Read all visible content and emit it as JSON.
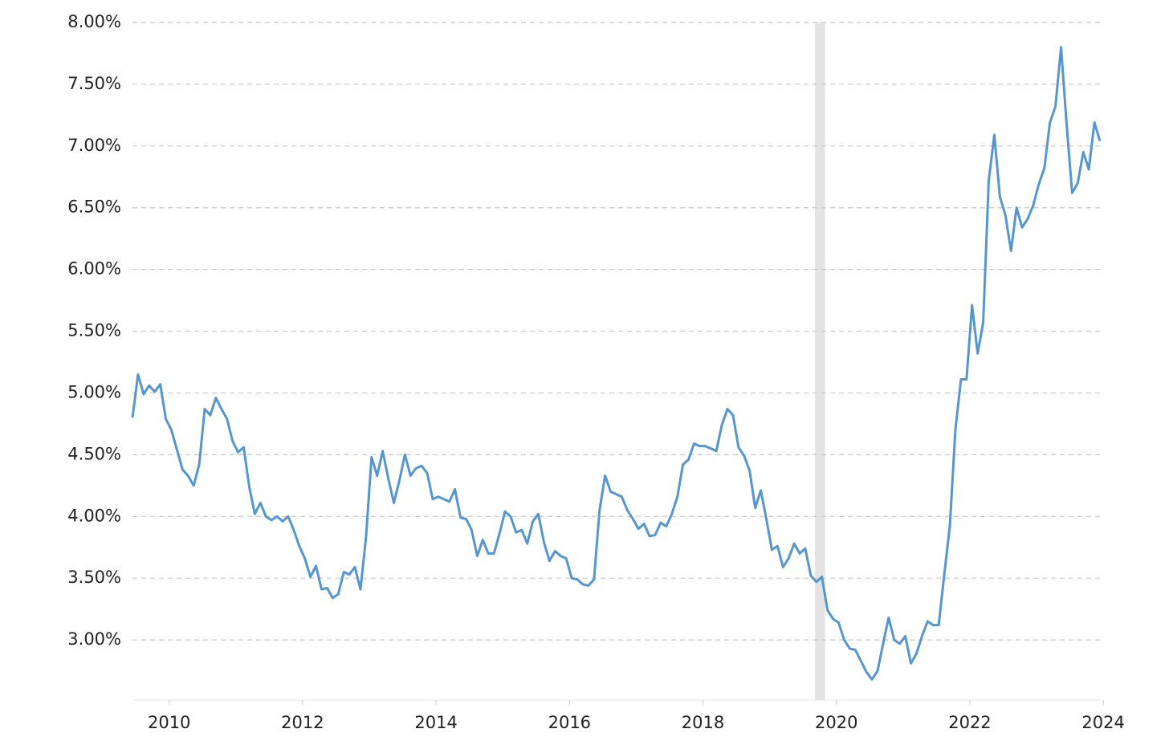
{
  "chart_data": {
    "type": "line",
    "x": [
      2009.45,
      2009.533,
      2009.617,
      2009.7,
      2009.783,
      2009.867,
      2009.95,
      2010.033,
      2010.117,
      2010.2,
      2010.283,
      2010.367,
      2010.45,
      2010.533,
      2010.617,
      2010.7,
      2010.783,
      2010.867,
      2010.95,
      2011.033,
      2011.117,
      2011.2,
      2011.283,
      2011.367,
      2011.45,
      2011.533,
      2011.617,
      2011.7,
      2011.783,
      2011.867,
      2011.95,
      2012.033,
      2012.117,
      2012.2,
      2012.283,
      2012.367,
      2012.45,
      2012.533,
      2012.617,
      2012.7,
      2012.783,
      2012.867,
      2012.95,
      2013.033,
      2013.117,
      2013.2,
      2013.283,
      2013.367,
      2013.45,
      2013.533,
      2013.617,
      2013.7,
      2013.783,
      2013.867,
      2013.95,
      2014.033,
      2014.117,
      2014.2,
      2014.283,
      2014.367,
      2014.45,
      2014.533,
      2014.617,
      2014.7,
      2014.783,
      2014.867,
      2014.95,
      2015.033,
      2015.117,
      2015.2,
      2015.283,
      2015.367,
      2015.45,
      2015.533,
      2015.617,
      2015.7,
      2015.783,
      2015.867,
      2015.95,
      2016.033,
      2016.117,
      2016.2,
      2016.283,
      2016.367,
      2016.45,
      2016.533,
      2016.617,
      2016.7,
      2016.783,
      2016.867,
      2016.95,
      2017.033,
      2017.117,
      2017.2,
      2017.283,
      2017.367,
      2017.45,
      2017.533,
      2017.617,
      2017.7,
      2017.783,
      2017.867,
      2017.95,
      2018.033,
      2018.117,
      2018.2,
      2018.283,
      2018.367,
      2018.45,
      2018.533,
      2018.617,
      2018.7,
      2018.783,
      2018.867,
      2018.95,
      2019.033,
      2019.117,
      2019.2,
      2019.283,
      2019.367,
      2019.45,
      2019.533,
      2019.617,
      2019.7,
      2019.783,
      2019.867,
      2019.95,
      2020.033,
      2020.117,
      2020.2,
      2020.283,
      2020.367,
      2020.45,
      2020.533,
      2020.617,
      2020.7,
      2020.783,
      2020.867,
      2020.95,
      2021.033,
      2021.117,
      2021.2,
      2021.283,
      2021.367,
      2021.45,
      2021.533,
      2021.617,
      2021.7,
      2021.783,
      2021.867,
      2021.95,
      2022.033,
      2022.117,
      2022.2,
      2022.283,
      2022.367,
      2022.45,
      2022.533,
      2022.617,
      2022.7,
      2022.783,
      2022.867,
      2022.95,
      2023.033,
      2023.117,
      2023.2,
      2023.283,
      2023.367,
      2023.45,
      2023.533,
      2023.617,
      2023.7,
      2023.783,
      2023.867,
      2023.95
    ],
    "series": [
      {
        "color": "#5596d0",
        "values": [
          4.8,
          5.15,
          4.99,
          5.06,
          5.01,
          5.07,
          4.79,
          4.7,
          4.54,
          4.38,
          4.33,
          4.25,
          4.42,
          4.87,
          4.82,
          4.96,
          4.87,
          4.79,
          4.61,
          4.52,
          4.56,
          4.24,
          4.02,
          4.11,
          4.0,
          3.97,
          4.0,
          3.96,
          4.0,
          3.89,
          3.76,
          3.66,
          3.51,
          3.6,
          3.41,
          3.42,
          3.34,
          3.37,
          3.55,
          3.53,
          3.59,
          3.41,
          3.83,
          4.48,
          4.33,
          4.53,
          4.31,
          4.11,
          4.29,
          4.5,
          4.33,
          4.39,
          4.41,
          4.35,
          4.14,
          4.16,
          4.14,
          4.12,
          4.22,
          3.99,
          3.98,
          3.89,
          3.68,
          3.81,
          3.7,
          3.7,
          3.86,
          4.04,
          4.0,
          3.87,
          3.89,
          3.78,
          3.96,
          4.02,
          3.79,
          3.64,
          3.72,
          3.68,
          3.66,
          3.5,
          3.49,
          3.45,
          3.44,
          3.49,
          4.05,
          4.33,
          4.2,
          4.18,
          4.16,
          4.05,
          3.98,
          3.9,
          3.94,
          3.84,
          3.85,
          3.95,
          3.92,
          4.02,
          4.16,
          4.42,
          4.46,
          4.59,
          4.57,
          4.57,
          4.55,
          4.53,
          4.74,
          4.87,
          4.82,
          4.56,
          4.49,
          4.37,
          4.07,
          4.21,
          3.98,
          3.73,
          3.76,
          3.59,
          3.66,
          3.78,
          3.7,
          3.74,
          3.52,
          3.47,
          3.51,
          3.24,
          3.17,
          3.14,
          3.0,
          2.93,
          2.92,
          2.83,
          2.74,
          2.68,
          2.75,
          2.97,
          3.18,
          3.0,
          2.97,
          3.03,
          2.81,
          2.89,
          3.03,
          3.15,
          3.12,
          3.12,
          3.53,
          3.92,
          4.7,
          5.11,
          5.11,
          5.71,
          5.32,
          5.57,
          6.72,
          7.09,
          6.59,
          6.44,
          6.15,
          6.5,
          6.34,
          6.41,
          6.52,
          6.69,
          6.82,
          7.19,
          7.32,
          7.8,
          7.18,
          6.62,
          6.7,
          6.95,
          6.81,
          7.19,
          7.04
        ]
      }
    ],
    "xlim": [
      2009.45,
      2023.95
    ],
    "xticks": [
      2010,
      2012,
      2014,
      2016,
      2018,
      2020,
      2022,
      2024
    ],
    "ylim": [
      2.5,
      8.0
    ],
    "yticks": [
      {
        "value": 3,
        "label": "3.00%"
      },
      {
        "value": 3.5,
        "label": "3.50%"
      },
      {
        "value": 4,
        "label": "4.00%"
      },
      {
        "value": 4.5,
        "label": "4.50%"
      },
      {
        "value": 5,
        "label": "5.00%"
      },
      {
        "value": 5.5,
        "label": "5.50%"
      },
      {
        "value": 6,
        "label": "6.00%"
      },
      {
        "value": 6.5,
        "label": "6.50%"
      },
      {
        "value": 7,
        "label": "7.00%"
      },
      {
        "value": 7.5,
        "label": "7.50%"
      },
      {
        "value": 8,
        "label": "8.00%"
      }
    ],
    "shaded_region": [
      2019.68,
      2019.83
    ],
    "grid": true
  }
}
